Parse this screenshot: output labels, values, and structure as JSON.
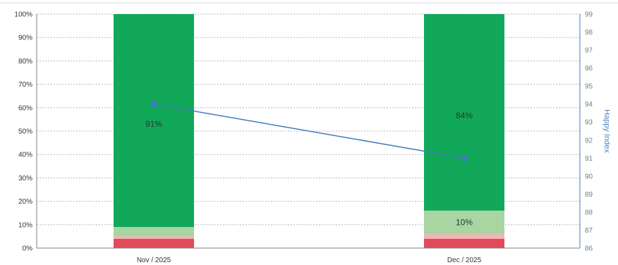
{
  "chart_data": {
    "type": "bar",
    "stacked": true,
    "categories": [
      "Nov / 2025",
      "Dec / 2025"
    ],
    "series": [
      {
        "values": [
          4,
          4
        ],
        "color": "#e04b5b"
      },
      {
        "values": [
          1,
          2
        ],
        "color": "#f2b3b3"
      },
      {
        "values": [
          4,
          10
        ],
        "color": "#a8d5a2"
      },
      {
        "values": [
          91,
          84
        ],
        "color": "#12a85a"
      }
    ],
    "segment_labels": [
      {
        "category": 0,
        "series": 3,
        "text": "91%"
      },
      {
        "category": 1,
        "series": 2,
        "text": "10%"
      },
      {
        "category": 1,
        "series": 3,
        "text": "84%"
      }
    ],
    "line_series": {
      "values": [
        94,
        91
      ],
      "color": "#3f7cc0",
      "axis": "right"
    },
    "y_left": {
      "ylim": [
        0,
        100
      ],
      "ticks": [
        "0%",
        "10%",
        "20%",
        "30%",
        "40%",
        "50%",
        "60%",
        "70%",
        "80%",
        "90%",
        "100%"
      ]
    },
    "y_right": {
      "label": "Happy Index",
      "ylim": [
        86,
        99
      ],
      "ticks": [
        "86",
        "87",
        "88",
        "89",
        "90",
        "91",
        "92",
        "93",
        "94",
        "95",
        "96",
        "97",
        "98",
        "99"
      ]
    },
    "grid": true,
    "grid_color": "#b8b8b8",
    "axis_color": "#7aa7d6"
  }
}
